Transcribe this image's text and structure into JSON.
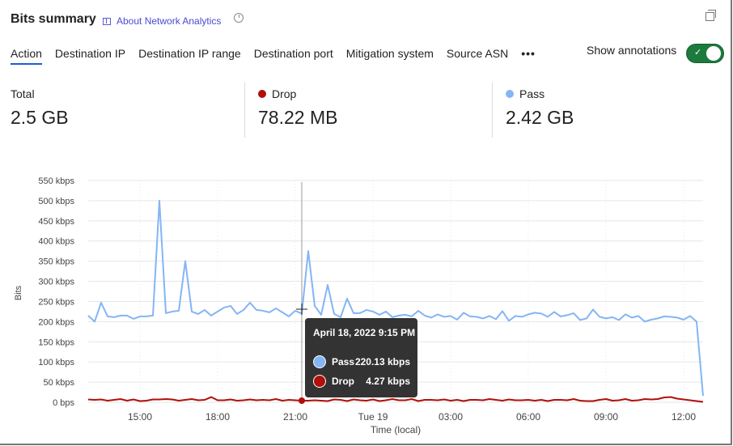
{
  "header": {
    "title": "Bits summary",
    "about_link": "About Network Analytics",
    "icons": [
      "book-icon",
      "clock-icon",
      "copy-icon"
    ]
  },
  "tabs": [
    {
      "label": "Action",
      "active": true
    },
    {
      "label": "Destination IP"
    },
    {
      "label": "Destination IP range"
    },
    {
      "label": "Destination port"
    },
    {
      "label": "Mitigation system"
    },
    {
      "label": "Source ASN"
    },
    {
      "label": "•••"
    }
  ],
  "annotations": {
    "label": "Show annotations",
    "enabled": true,
    "check": "✓"
  },
  "stats": [
    {
      "label": "Total",
      "value": "2.5 GB"
    },
    {
      "label": "Drop",
      "value": "78.22 MB",
      "color": "#b00f0a"
    },
    {
      "label": "Pass",
      "value": "2.42 GB",
      "color": "#84b5f5"
    }
  ],
  "tooltip": {
    "title": "April 18, 2022 9:15 PM",
    "rows": [
      {
        "name": "Pass",
        "value": "220.13 kbps",
        "color": "#84b5f5"
      },
      {
        "name": "Drop",
        "value": "4.27 kbps",
        "color": "#b00f0a"
      }
    ]
  },
  "chart_data": {
    "type": "line",
    "xlabel": "Time (local)",
    "ylabel": "Bits",
    "ylim": [
      0,
      550
    ],
    "y_unit": "kbps",
    "y_ticks": [
      "0 bps",
      "50 kbps",
      "100 kbps",
      "150 kbps",
      "200 kbps",
      "250 kbps",
      "300 kbps",
      "350 kbps",
      "400 kbps",
      "450 kbps",
      "500 kbps",
      "550 kbps"
    ],
    "x_ticks": [
      "15:00",
      "18:00",
      "21:00",
      "Tue 19",
      "03:00",
      "06:00",
      "09:00",
      "12:00"
    ],
    "x_start": "Mon 18 13:00",
    "x_end": "Tue 19 12:45",
    "x_interval_minutes": 15,
    "grid": true,
    "hover_index": 33,
    "series": [
      {
        "name": "Pass",
        "color": "#84b5f5",
        "values": [
          215,
          200,
          247,
          213,
          211,
          215,
          215,
          207,
          213,
          213,
          215,
          500,
          221,
          225,
          227,
          350,
          225,
          219,
          229,
          215,
          225,
          235,
          239,
          219,
          229,
          247,
          229,
          227,
          223,
          233,
          223,
          213,
          227,
          220,
          375,
          239,
          217,
          291,
          219,
          211,
          257,
          221,
          221,
          229,
          225,
          217,
          225,
          211,
          215,
          217,
          213,
          227,
          215,
          210,
          218,
          212,
          214,
          205,
          222,
          213,
          212,
          208,
          214,
          206,
          226,
          202,
          214,
          212,
          218,
          222,
          220,
          212,
          224,
          213,
          216,
          221,
          204,
          208,
          230,
          212,
          208,
          211,
          204,
          218,
          210,
          214,
          200,
          205,
          208,
          213,
          212,
          210,
          205,
          214,
          200,
          16
        ]
      },
      {
        "name": "Drop",
        "color": "#b00f0a",
        "values": [
          7,
          6,
          7,
          4,
          6,
          8,
          4,
          7,
          3,
          4,
          7,
          7,
          8,
          7,
          4,
          6,
          8,
          5,
          6,
          13,
          5,
          5,
          7,
          4,
          5,
          7,
          5,
          6,
          5,
          8,
          4,
          6,
          5,
          4,
          4,
          5,
          4,
          3,
          7,
          6,
          3,
          7,
          5,
          4,
          7,
          3,
          5,
          8,
          5,
          5,
          8,
          3,
          6,
          6,
          5,
          7,
          4,
          6,
          3,
          6,
          6,
          5,
          8,
          6,
          4,
          7,
          5,
          5,
          6,
          4,
          6,
          3,
          6,
          6,
          5,
          8,
          4,
          3,
          3,
          6,
          8,
          4,
          5,
          8,
          4,
          5,
          8,
          7,
          8,
          12,
          13,
          9,
          7,
          5,
          3,
          1
        ]
      }
    ]
  }
}
